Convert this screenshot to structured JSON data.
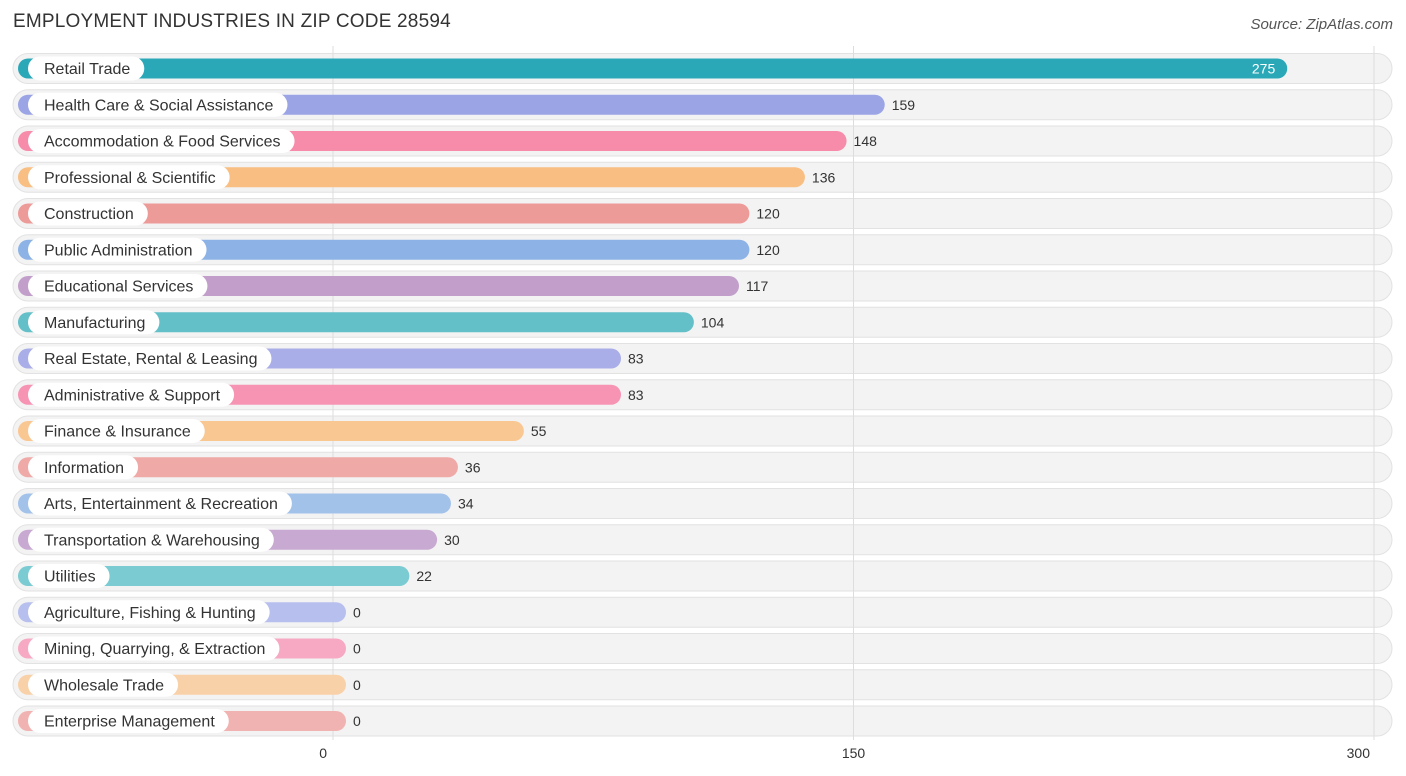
{
  "chart_data": {
    "type": "bar",
    "orientation": "horizontal",
    "title": "EMPLOYMENT INDUSTRIES IN ZIP CODE 28594",
    "source": "Source: ZipAtlas.com",
    "xlim": [
      0,
      300
    ],
    "ticks": [
      0,
      150,
      300
    ],
    "categories": [
      "Retail Trade",
      "Health Care & Social Assistance",
      "Accommodation & Food Services",
      "Professional & Scientific",
      "Construction",
      "Public Administration",
      "Educational Services",
      "Manufacturing",
      "Real Estate, Rental & Leasing",
      "Administrative & Support",
      "Finance & Insurance",
      "Information",
      "Arts, Entertainment & Recreation",
      "Transportation & Warehousing",
      "Utilities",
      "Agriculture, Fishing & Hunting",
      "Mining, Quarrying, & Extraction",
      "Wholesale Trade",
      "Enterprise Management"
    ],
    "values": [
      275,
      159,
      148,
      136,
      120,
      120,
      117,
      104,
      83,
      83,
      55,
      36,
      34,
      30,
      22,
      0,
      0,
      0,
      0
    ],
    "colors": [
      "#2BA8B8",
      "#9BA5E6",
      "#F68BAA",
      "#F9BE82",
      "#EC9B98",
      "#8DB3E6",
      "#C29FCA",
      "#63BFC8",
      "#A9AEE8",
      "#F794B4",
      "#F9C792",
      "#EFAAA8",
      "#A3C2EA",
      "#C8A9D2",
      "#7ACBD2",
      "#B7BFEE",
      "#F7A9C3",
      "#F9D1A8",
      "#F1B3B1"
    ],
    "grid": true
  }
}
